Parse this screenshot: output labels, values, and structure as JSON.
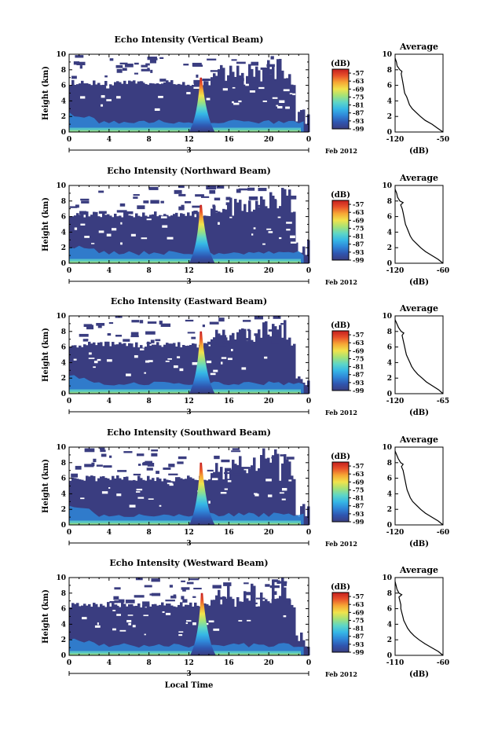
{
  "chart_data": [
    {
      "type": "heatmap",
      "title": "Echo Intensity (Vertical Beam)",
      "ylabel": "Height (km)",
      "xlabel": "",
      "x_ticks": [
        "0",
        "4",
        "8",
        "12",
        "16",
        "20",
        "0"
      ],
      "y_ticks": [
        "0",
        "2",
        "4",
        "6",
        "8",
        "10"
      ],
      "xlim": [
        0,
        24
      ],
      "ylim": [
        0,
        10
      ],
      "date_tick": "3",
      "date_label": "Feb 2012",
      "colorbar": {
        "label": "(dB)",
        "ticks": [
          "-57",
          "-63",
          "-69",
          "-75",
          "-81",
          "-87",
          "-93",
          "-99"
        ],
        "range": [
          -99,
          -54
        ]
      },
      "plume": {
        "center_hour": 13.2,
        "top_km": 7.0
      },
      "upper_layer_top_km": 6.3,
      "profile": {
        "title": "Average",
        "xlabel": "(dB)",
        "x_ticks": [
          "-120",
          "-50"
        ],
        "xlim": [
          -120,
          -50
        ],
        "y_ticks": [
          "0",
          "2",
          "4",
          "6",
          "8",
          "10"
        ],
        "points": [
          [
            -50,
            0
          ],
          [
            -58,
            0.5
          ],
          [
            -66,
            1.0
          ],
          [
            -76,
            1.5
          ],
          [
            -83,
            2.0
          ],
          [
            -89,
            2.5
          ],
          [
            -95,
            3.0
          ],
          [
            -99,
            3.5
          ],
          [
            -101,
            4.0
          ],
          [
            -103,
            4.5
          ],
          [
            -106,
            5.0
          ],
          [
            -107,
            5.5
          ],
          [
            -108,
            6.0
          ],
          [
            -109,
            6.5
          ],
          [
            -110,
            7.0
          ],
          [
            -111,
            7.5
          ],
          [
            -110,
            7.8
          ],
          [
            -113,
            8.0
          ],
          [
            -117,
            8.5
          ],
          [
            -118,
            9.0
          ],
          [
            -120,
            9.5
          ]
        ]
      }
    },
    {
      "type": "heatmap",
      "title": "Echo Intensity (Northward Beam)",
      "ylabel": "Height (km)",
      "xlabel": "",
      "x_ticks": [
        "0",
        "4",
        "8",
        "12",
        "16",
        "20",
        "0"
      ],
      "y_ticks": [
        "0",
        "2",
        "4",
        "6",
        "8",
        "10"
      ],
      "xlim": [
        0,
        24
      ],
      "ylim": [
        0,
        10
      ],
      "date_tick": "3",
      "date_label": "Feb 2012",
      "colorbar": {
        "label": "(dB)",
        "ticks": [
          "-57",
          "-63",
          "-69",
          "-75",
          "-81",
          "-87",
          "-93",
          "-99"
        ],
        "range": [
          -99,
          -54
        ]
      },
      "plume": {
        "center_hour": 13.2,
        "top_km": 7.5
      },
      "upper_layer_top_km": 6.3,
      "profile": {
        "title": "Average",
        "xlabel": "(dB)",
        "x_ticks": [
          "-120",
          "-60"
        ],
        "xlim": [
          -120,
          -60
        ],
        "y_ticks": [
          "0",
          "2",
          "4",
          "6",
          "8",
          "10"
        ],
        "points": [
          [
            -60,
            0
          ],
          [
            -66,
            0.5
          ],
          [
            -74,
            1.0
          ],
          [
            -82,
            1.5
          ],
          [
            -88,
            2.0
          ],
          [
            -93,
            2.5
          ],
          [
            -98,
            3.0
          ],
          [
            -101,
            3.5
          ],
          [
            -103,
            4.0
          ],
          [
            -105,
            4.5
          ],
          [
            -107,
            5.0
          ],
          [
            -108,
            5.5
          ],
          [
            -109,
            6.0
          ],
          [
            -110,
            6.5
          ],
          [
            -111,
            7.0
          ],
          [
            -113,
            7.5
          ],
          [
            -110,
            7.8
          ],
          [
            -114,
            8.0
          ],
          [
            -117,
            8.5
          ],
          [
            -118,
            9.0
          ],
          [
            -120,
            9.5
          ]
        ]
      }
    },
    {
      "type": "heatmap",
      "title": "Echo Intensity (Eastward Beam)",
      "ylabel": "Height (km)",
      "xlabel": "",
      "x_ticks": [
        "0",
        "4",
        "8",
        "12",
        "16",
        "20",
        "0"
      ],
      "y_ticks": [
        "0",
        "2",
        "4",
        "6",
        "8",
        "10"
      ],
      "xlim": [
        0,
        24
      ],
      "ylim": [
        0,
        10
      ],
      "date_tick": "3",
      "date_label": "Feb 2012",
      "colorbar": {
        "label": "(dB)",
        "ticks": [
          "-57",
          "-63",
          "-69",
          "-75",
          "-81",
          "-87",
          "-93",
          "-99"
        ],
        "range": [
          -99,
          -54
        ]
      },
      "plume": {
        "center_hour": 13.2,
        "top_km": 8.0
      },
      "upper_layer_top_km": 6.3,
      "profile": {
        "title": "Average",
        "xlabel": "(dB)",
        "x_ticks": [
          "-120",
          "-65"
        ],
        "xlim": [
          -120,
          -65
        ],
        "y_ticks": [
          "0",
          "2",
          "4",
          "6",
          "8",
          "10"
        ],
        "points": [
          [
            -65,
            0
          ],
          [
            -70,
            0.5
          ],
          [
            -77,
            1.0
          ],
          [
            -84,
            1.5
          ],
          [
            -89,
            2.0
          ],
          [
            -94,
            2.5
          ],
          [
            -98,
            3.0
          ],
          [
            -101,
            3.5
          ],
          [
            -103,
            4.0
          ],
          [
            -105,
            4.5
          ],
          [
            -107,
            5.0
          ],
          [
            -108,
            5.5
          ],
          [
            -109,
            6.0
          ],
          [
            -110,
            6.5
          ],
          [
            -111,
            7.0
          ],
          [
            -112,
            7.5
          ],
          [
            -110,
            7.8
          ],
          [
            -113,
            8.0
          ],
          [
            -116,
            8.5
          ],
          [
            -118,
            9.0
          ],
          [
            -120,
            9.5
          ]
        ]
      }
    },
    {
      "type": "heatmap",
      "title": "Echo Intensity (Southward Beam)",
      "ylabel": "Height (km)",
      "xlabel": "",
      "x_ticks": [
        "0",
        "4",
        "8",
        "12",
        "16",
        "20",
        "0"
      ],
      "y_ticks": [
        "0",
        "2",
        "4",
        "6",
        "8",
        "10"
      ],
      "xlim": [
        0,
        24
      ],
      "ylim": [
        0,
        10
      ],
      "date_tick": "3",
      "date_label": "Feb 2012",
      "colorbar": {
        "label": "(dB)",
        "ticks": [
          "-57",
          "-63",
          "-69",
          "-75",
          "-81",
          "-87",
          "-93",
          "-99"
        ],
        "range": [
          -99,
          -54
        ]
      },
      "plume": {
        "center_hour": 13.2,
        "top_km": 8.0
      },
      "upper_layer_top_km": 6.0,
      "profile": {
        "title": "Average",
        "xlabel": "(dB)",
        "x_ticks": [
          "-120",
          "-60"
        ],
        "xlim": [
          -120,
          -60
        ],
        "y_ticks": [
          "0",
          "2",
          "4",
          "6",
          "8",
          "10"
        ],
        "points": [
          [
            -60,
            0
          ],
          [
            -66,
            0.5
          ],
          [
            -74,
            1.0
          ],
          [
            -82,
            1.5
          ],
          [
            -88,
            2.0
          ],
          [
            -93,
            2.5
          ],
          [
            -98,
            3.0
          ],
          [
            -101,
            3.5
          ],
          [
            -103,
            4.0
          ],
          [
            -105,
            4.5
          ],
          [
            -106,
            5.0
          ],
          [
            -107,
            5.5
          ],
          [
            -108,
            6.0
          ],
          [
            -109,
            6.5
          ],
          [
            -110,
            7.0
          ],
          [
            -112,
            7.5
          ],
          [
            -110,
            7.8
          ],
          [
            -113,
            8.0
          ],
          [
            -116,
            8.5
          ],
          [
            -118,
            9.0
          ],
          [
            -120,
            9.5
          ]
        ]
      }
    },
    {
      "type": "heatmap",
      "title": "Echo Intensity (Westward Beam)",
      "ylabel": "Height (km)",
      "xlabel": "Local Time",
      "x_ticks": [
        "0",
        "4",
        "8",
        "12",
        "16",
        "20",
        "0"
      ],
      "y_ticks": [
        "0",
        "2",
        "4",
        "6",
        "8",
        "10"
      ],
      "xlim": [
        0,
        24
      ],
      "ylim": [
        0,
        10
      ],
      "date_tick": "3",
      "date_label": "Feb 2012",
      "colorbar": {
        "label": "(dB)",
        "ticks": [
          "-57",
          "-63",
          "-69",
          "-75",
          "-81",
          "-87",
          "-93",
          "-99"
        ],
        "range": [
          -99,
          -54
        ]
      },
      "plume": {
        "center_hour": 13.3,
        "top_km": 8.0
      },
      "upper_layer_top_km": 6.5,
      "profile": {
        "title": "Average",
        "xlabel": "(dB)",
        "x_ticks": [
          "-110",
          "-60"
        ],
        "xlim": [
          -110,
          -60
        ],
        "y_ticks": [
          "0",
          "2",
          "4",
          "6",
          "8",
          "10"
        ],
        "points": [
          [
            -60,
            0
          ],
          [
            -65,
            0.5
          ],
          [
            -72,
            1.0
          ],
          [
            -79,
            1.5
          ],
          [
            -85,
            2.0
          ],
          [
            -90,
            2.5
          ],
          [
            -94,
            3.0
          ],
          [
            -97,
            3.5
          ],
          [
            -99,
            4.0
          ],
          [
            -101,
            4.5
          ],
          [
            -102,
            5.0
          ],
          [
            -103,
            5.5
          ],
          [
            -104,
            6.0
          ],
          [
            -104,
            6.5
          ],
          [
            -105,
            7.0
          ],
          [
            -106,
            7.5
          ],
          [
            -103,
            7.8
          ],
          [
            -106,
            8.0
          ],
          [
            -108,
            8.5
          ],
          [
            -109,
            9.0
          ],
          [
            -110,
            9.5
          ]
        ]
      }
    }
  ],
  "colors": {
    "low": "#3a3d80",
    "scale": [
      "#3a3d80",
      "#2f56b0",
      "#2f86d8",
      "#36b7e6",
      "#5ed6c7",
      "#a4e278",
      "#f1e34c",
      "#f6a835",
      "#e8522a",
      "#c41f1f"
    ],
    "ink": "#000000"
  }
}
